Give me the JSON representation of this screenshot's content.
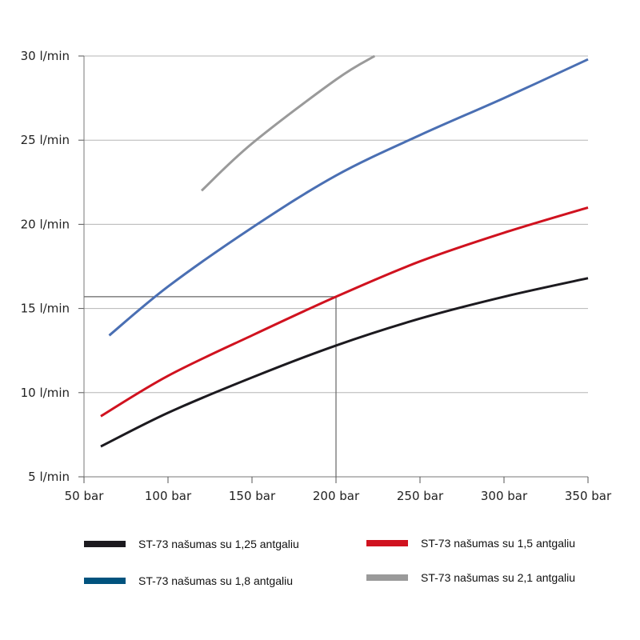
{
  "chart_data": {
    "type": "line",
    "title": "",
    "xlabel": "",
    "ylabel": "",
    "xlim": [
      50,
      350
    ],
    "ylim": [
      5,
      30
    ],
    "x_ticks": [
      {
        "value": 50,
        "label": "50 bar"
      },
      {
        "value": 100,
        "label": "100 bar"
      },
      {
        "value": 150,
        "label": "150 bar"
      },
      {
        "value": 200,
        "label": "200 bar"
      },
      {
        "value": 250,
        "label": "250 bar"
      },
      {
        "value": 300,
        "label": "300 bar"
      },
      {
        "value": 350,
        "label": "350 bar"
      }
    ],
    "y_ticks": [
      {
        "value": 5,
        "label": "5 l/min"
      },
      {
        "value": 10,
        "label": "10 l/min"
      },
      {
        "value": 15,
        "label": "15 l/min"
      },
      {
        "value": 20,
        "label": "20 l/min"
      },
      {
        "value": 25,
        "label": "25 l/min"
      },
      {
        "value": 30,
        "label": "30 l/min"
      }
    ],
    "grid": "horizontal",
    "legend_position": "bottom",
    "series": [
      {
        "name": "ST-73 našumas su 1,25 antgaliu",
        "color": "#1c1a1f",
        "x": [
          60,
          100,
          150,
          200,
          250,
          300,
          350
        ],
        "y": [
          6.8,
          8.8,
          10.9,
          12.8,
          14.4,
          15.7,
          16.8
        ]
      },
      {
        "name": "ST-73 našumas su 1,5 antgaliu",
        "color": "#d0121f",
        "x": [
          60,
          100,
          150,
          200,
          250,
          300,
          350
        ],
        "y": [
          8.6,
          11.0,
          13.4,
          15.7,
          17.8,
          19.5,
          21.0
        ]
      },
      {
        "name": "ST-73 našumas su 1,8 antgaliu",
        "color": "#4a6fb3",
        "x": [
          65,
          100,
          150,
          200,
          250,
          300,
          350
        ],
        "y": [
          13.4,
          16.3,
          19.8,
          22.9,
          25.3,
          27.5,
          29.8
        ]
      },
      {
        "name": "ST-73 našumas su 2,1 antgaliu",
        "color": "#9a9a9a",
        "x": [
          120,
          150,
          200,
          223
        ],
        "y": [
          22.0,
          24.8,
          28.6,
          30.0
        ]
      }
    ],
    "annotations": [
      {
        "type": "crosshair",
        "x": 200,
        "y": 15.7
      }
    ]
  },
  "legend_items": [
    {
      "label": "ST-73 našumas su 1,25 antgaliu",
      "color": "#1c1a1f"
    },
    {
      "label": "ST-73 našumas su 1,5 antgaliu",
      "color": "#d0121f"
    },
    {
      "label": "ST-73 našumas su 1,8 antgaliu",
      "color": "#00537e"
    },
    {
      "label": "ST-73 našumas su 2,1 antgaliu",
      "color": "#9a9a9a"
    }
  ]
}
